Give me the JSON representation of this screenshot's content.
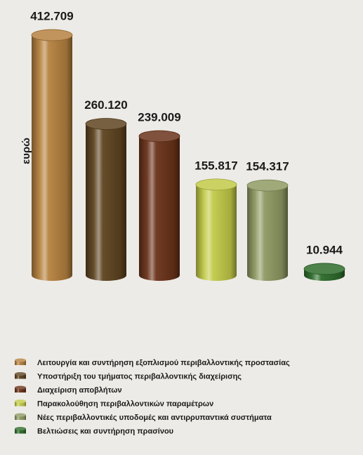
{
  "chart_data": {
    "type": "bar",
    "y_label": "ευρώ",
    "categories": [
      "Λειτουργία και συντήρηση εξοπλισμού περιβαλλοντικής προστασίας",
      "Υποστήριξη του τμήματος περιβαλλοντικής διαχείρισης",
      "Διαχείριση αποβλήτων",
      "Παρακολούθηση περιβαλλοντικών παραμέτρων",
      "Νέες περιβαλλοντικές υποδομές και αντιρρυπαντικά συστήματα",
      "Βελτιώσεις και συντήρηση πρασίνου"
    ],
    "values": [
      412709,
      260120,
      239009,
      155817,
      154317,
      10944
    ],
    "value_labels": [
      "412.709",
      "260.120",
      "239.009",
      "155.817",
      "154.317",
      "10.944"
    ],
    "colors": [
      "#b5813f",
      "#5e4420",
      "#6a3219",
      "#c2ca48",
      "#8e9a63",
      "#2e6c2b"
    ],
    "ylim": [
      0,
      420000
    ]
  }
}
